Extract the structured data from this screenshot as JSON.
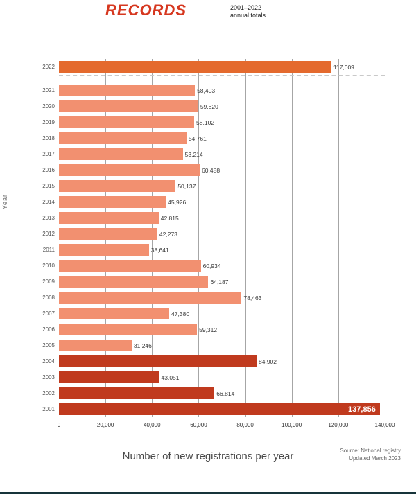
{
  "header": {
    "masthead": "RECORDS",
    "masthead_color": "#d6371f",
    "period_line1": "2001–2022",
    "period_line2": "annual totals"
  },
  "chart_data": {
    "type": "bar",
    "orientation": "horizontal",
    "title": "RECORDS",
    "xlabel": "Number of new registrations per year",
    "ylabel": "Year",
    "xlim": [
      0,
      140000
    ],
    "grid": true,
    "legend": "none",
    "xtick_values": [
      0,
      20000,
      40000,
      60000,
      80000,
      100000,
      120000,
      140000
    ],
    "xtick_labels": [
      "0",
      "20,000",
      "40,000",
      "60,000",
      "80,000",
      "100,000",
      "120,000",
      "140,000"
    ],
    "categories": [
      "2022",
      "2021",
      "2020",
      "2019",
      "2018",
      "2017",
      "2016",
      "2015",
      "2014",
      "2013",
      "2012",
      "2011",
      "2010",
      "2009",
      "2008",
      "2007",
      "2006",
      "2005",
      "2004",
      "2003",
      "2002",
      "2001"
    ],
    "values": [
      117009,
      58403,
      59820,
      58102,
      54761,
      53214,
      60488,
      50137,
      45926,
      42815,
      42273,
      38641,
      60934,
      64187,
      78463,
      47380,
      59312,
      31246,
      84902,
      43051,
      66814,
      137856
    ],
    "value_labels": [
      "117,009",
      "58,403",
      "59,820",
      "58,102",
      "54,761",
      "53,214",
      "60,488",
      "50,137",
      "45,926",
      "42,815",
      "42,273",
      "38,641",
      "60,934",
      "64,187",
      "78,463",
      "47,380",
      "59,312",
      "31,246",
      "84,902",
      "43,051",
      "66,814",
      "137,856"
    ],
    "row_styles": [
      "special",
      "regular",
      "regular",
      "regular",
      "regular",
      "regular",
      "regular",
      "regular",
      "regular",
      "regular",
      "regular",
      "regular",
      "regular",
      "regular",
      "regular",
      "regular",
      "regular",
      "regular",
      "highlight",
      "highlight",
      "highlight",
      "total"
    ],
    "bar_colors": {
      "special": "#e46a2e",
      "regular": "#f29070",
      "highlight": "#c03a1e",
      "total": "#c03a1e"
    },
    "separator_after_index": 0
  },
  "footer": {
    "caption": "Number of new registrations per year",
    "source_line1": "Source: National registry",
    "source_line2": "Updated March 2023"
  }
}
